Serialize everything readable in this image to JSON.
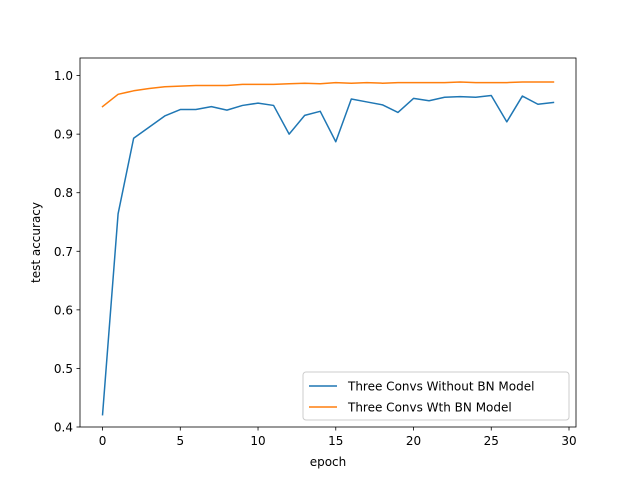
{
  "chart_data": {
    "type": "line",
    "xlabel": "epoch",
    "ylabel": "test accuracy",
    "xlim": [
      -1.45,
      30.45
    ],
    "ylim": [
      0.4,
      1.03
    ],
    "xticks": [
      0,
      5,
      10,
      15,
      20,
      25,
      30
    ],
    "yticks": [
      0.4,
      0.5,
      0.6,
      0.7,
      0.8,
      0.9,
      1.0
    ],
    "xtick_labels": [
      "0",
      "5",
      "10",
      "15",
      "20",
      "25",
      "30"
    ],
    "ytick_labels": [
      "0.4",
      "0.5",
      "0.6",
      "0.7",
      "0.8",
      "0.9",
      "1.0"
    ],
    "grid": false,
    "legend_position": "lower-right",
    "x": [
      0,
      1,
      2,
      3,
      4,
      5,
      6,
      7,
      8,
      9,
      10,
      11,
      12,
      13,
      14,
      15,
      16,
      17,
      18,
      19,
      20,
      21,
      22,
      23,
      24,
      25,
      26,
      27,
      28,
      29
    ],
    "series": [
      {
        "name": "Three Convs Without BN Model",
        "color": "#1f77b4",
        "values": [
          0.421,
          0.764,
          0.893,
          0.912,
          0.931,
          0.942,
          0.942,
          0.947,
          0.941,
          0.949,
          0.953,
          0.949,
          0.9,
          0.932,
          0.939,
          0.887,
          0.96,
          0.955,
          0.95,
          0.937,
          0.961,
          0.957,
          0.963,
          0.964,
          0.963,
          0.966,
          0.921,
          0.965,
          0.951,
          0.954
        ]
      },
      {
        "name": "Three Convs Wth BN Model",
        "color": "#ff7f0e",
        "values": [
          0.947,
          0.968,
          0.974,
          0.978,
          0.981,
          0.982,
          0.983,
          0.983,
          0.983,
          0.985,
          0.985,
          0.985,
          0.986,
          0.987,
          0.986,
          0.988,
          0.987,
          0.988,
          0.987,
          0.988,
          0.988,
          0.988,
          0.988,
          0.989,
          0.988,
          0.988,
          0.988,
          0.989,
          0.989,
          0.989
        ]
      }
    ]
  }
}
